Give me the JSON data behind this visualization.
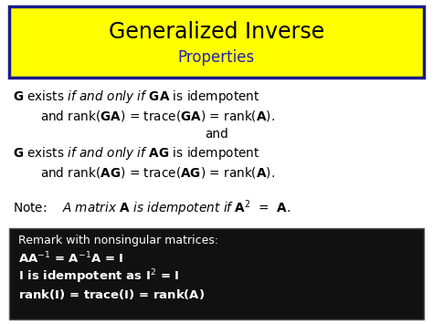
{
  "title_line1": "Generalized Inverse",
  "title_line2": "Properties",
  "title_bg": "#FFFF00",
  "title_border": "#1a1a8c",
  "bg_color": "#FFFFFF",
  "black_box_bg": "#111111",
  "black_box_text_color": "#FFFFFF",
  "main_text_color": "#000000",
  "title_color": "#2222AA",
  "figsize": [
    4.74,
    3.55
  ],
  "dpi": 100
}
